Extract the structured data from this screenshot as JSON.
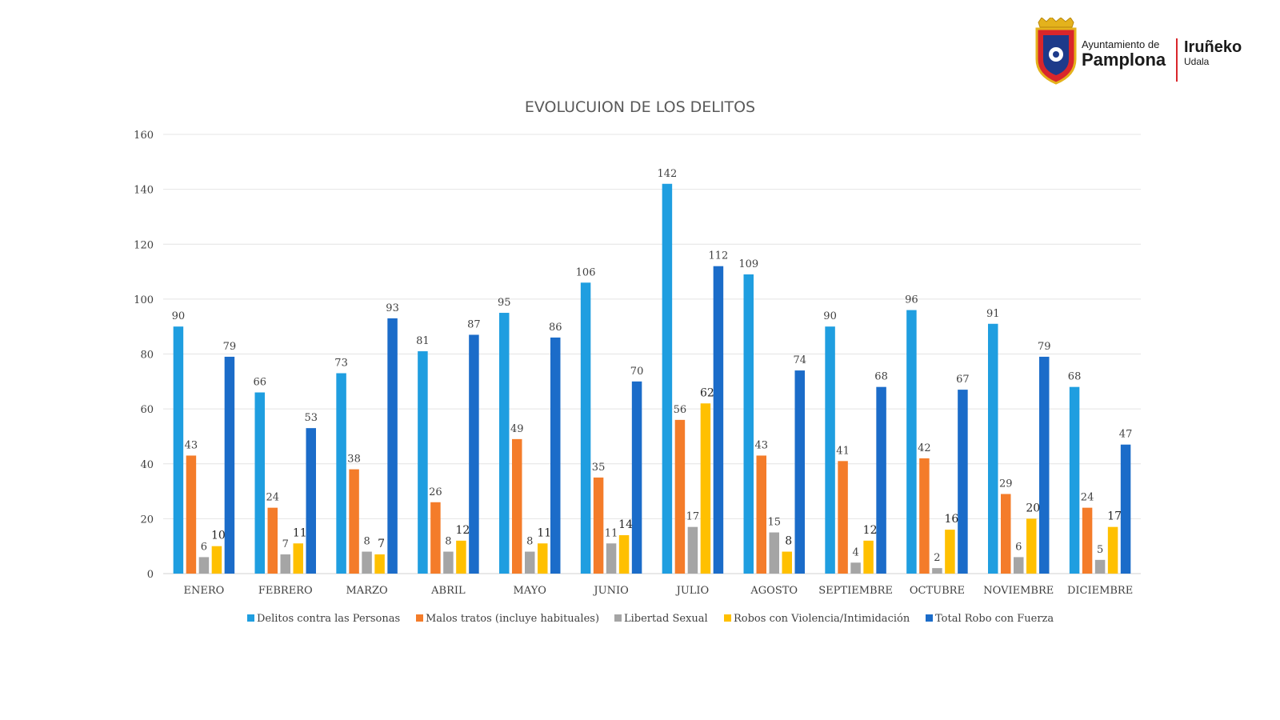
{
  "logo": {
    "line1": "Ayuntamiento de",
    "line2": "Pamplona",
    "line3": "Iruñeko",
    "line4": "Udala"
  },
  "chart_data": {
    "type": "bar",
    "title": "EVOLUCUION DE LOS DELITOS",
    "categories": [
      "ENERO",
      "FEBRERO",
      "MARZO",
      "ABRIL",
      "MAYO",
      "JUNIO",
      "JULIO",
      "AGOSTO",
      "SEPTIEMBRE",
      "OCTUBRE",
      "NOVIEMBRE",
      "DICIEMBRE"
    ],
    "ylim": [
      0,
      160
    ],
    "yticks": [
      0,
      20,
      40,
      60,
      80,
      100,
      120,
      140,
      160
    ],
    "grid": true,
    "legend_position": "bottom",
    "series": [
      {
        "name": "Delitos contra las Personas",
        "color": "#1f9ee0",
        "values": [
          90,
          66,
          73,
          81,
          95,
          106,
          142,
          109,
          90,
          96,
          91,
          68
        ]
      },
      {
        "name": "Malos tratos (incluye habituales)",
        "color": "#f47c2a",
        "values": [
          43,
          24,
          38,
          26,
          49,
          35,
          56,
          43,
          41,
          42,
          29,
          24
        ]
      },
      {
        "name": "Libertad Sexual",
        "color": "#a5a5a5",
        "values": [
          6,
          7,
          8,
          8,
          8,
          11,
          17,
          15,
          4,
          2,
          6,
          5
        ]
      },
      {
        "name": "Robos con Violencia/Intimidación",
        "color": "#ffc000",
        "values": [
          10,
          11,
          7,
          12,
          11,
          14,
          62,
          8,
          12,
          16,
          20,
          17
        ]
      },
      {
        "name": "Total Robo con Fuerza",
        "color": "#1b6cc9",
        "values": [
          79,
          53,
          93,
          87,
          86,
          70,
          112,
          74,
          68,
          67,
          79,
          47
        ]
      }
    ]
  }
}
